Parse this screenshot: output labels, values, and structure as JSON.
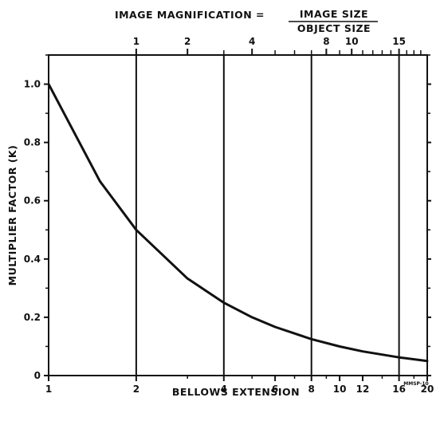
{
  "chart_data": {
    "type": "line",
    "title_prefix": "IMAGE MAGNIFICATION =",
    "title_numerator": "IMAGE SIZE",
    "title_denominator": "OBJECT SIZE",
    "xlabel": "BELLOWS EXTENSION",
    "ylabel": "MULTIPLIER FACTOR (K)",
    "x_scale": "log",
    "xlim": [
      1,
      20
    ],
    "ylim": [
      0,
      1.1
    ],
    "x_ticks": [
      1,
      2,
      4,
      6,
      8,
      10,
      12,
      16,
      20
    ],
    "x_tick_labels": [
      "1",
      "2",
      "4",
      "6",
      "8",
      "10",
      "12",
      "16",
      "20"
    ],
    "y_ticks": [
      0,
      0.2,
      0.4,
      0.6,
      0.8,
      1.0
    ],
    "y_tick_labels": [
      "0",
      "0.2",
      "0.4",
      "0.6",
      "0.8",
      "1.0"
    ],
    "top_axis_ticks": [
      1,
      2,
      4,
      8,
      10,
      15
    ],
    "top_axis_tick_labels": [
      "1",
      "2",
      "4",
      "8",
      "10",
      "15"
    ],
    "vertical_lines_at": [
      2,
      4,
      8,
      16
    ],
    "series": [
      {
        "x": [
          1,
          1.5,
          2,
          3,
          4,
          5,
          6,
          8,
          10,
          12,
          16,
          20
        ],
        "y": [
          1.0,
          0.667,
          0.5,
          0.333,
          0.25,
          0.2,
          0.167,
          0.125,
          0.1,
          0.083,
          0.0625,
          0.05
        ]
      }
    ],
    "grid": false,
    "code_label": "MMSP-10"
  }
}
